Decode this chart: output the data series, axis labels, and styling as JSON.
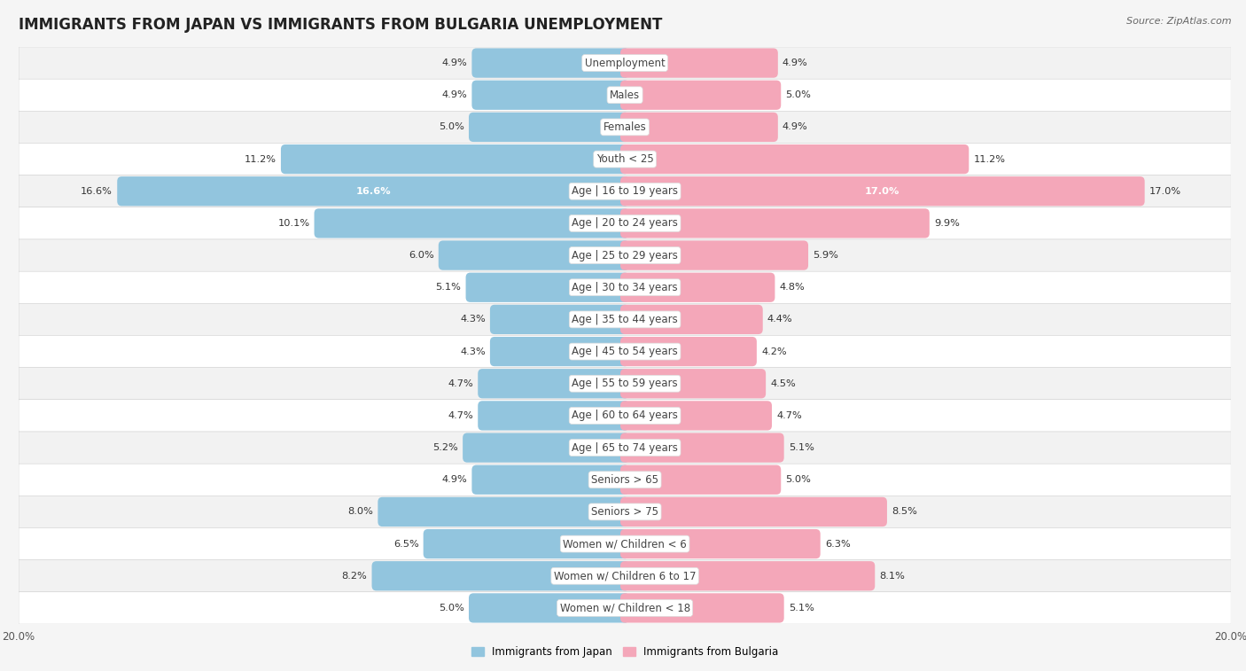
{
  "title": "IMMIGRANTS FROM JAPAN VS IMMIGRANTS FROM BULGARIA UNEMPLOYMENT",
  "source": "Source: ZipAtlas.com",
  "categories": [
    "Unemployment",
    "Males",
    "Females",
    "Youth < 25",
    "Age | 16 to 19 years",
    "Age | 20 to 24 years",
    "Age | 25 to 29 years",
    "Age | 30 to 34 years",
    "Age | 35 to 44 years",
    "Age | 45 to 54 years",
    "Age | 55 to 59 years",
    "Age | 60 to 64 years",
    "Age | 65 to 74 years",
    "Seniors > 65",
    "Seniors > 75",
    "Women w/ Children < 6",
    "Women w/ Children 6 to 17",
    "Women w/ Children < 18"
  ],
  "japan_values": [
    4.9,
    4.9,
    5.0,
    11.2,
    16.6,
    10.1,
    6.0,
    5.1,
    4.3,
    4.3,
    4.7,
    4.7,
    5.2,
    4.9,
    8.0,
    6.5,
    8.2,
    5.0
  ],
  "bulgaria_values": [
    4.9,
    5.0,
    4.9,
    11.2,
    17.0,
    9.9,
    5.9,
    4.8,
    4.4,
    4.2,
    4.5,
    4.7,
    5.1,
    5.0,
    8.5,
    6.3,
    8.1,
    5.1
  ],
  "japan_color": "#92c5de",
  "bulgaria_color": "#f4a7b9",
  "japan_label": "Immigrants from Japan",
  "bulgaria_label": "Immigrants from Bulgaria",
  "xlim": 20.0,
  "row_colors_even": "#f2f2f2",
  "row_colors_odd": "#ffffff",
  "title_fontsize": 12,
  "label_fontsize": 8.5,
  "value_fontsize": 8.2,
  "tick_fontsize": 8.5,
  "legend_fontsize": 8.5,
  "source_fontsize": 8
}
